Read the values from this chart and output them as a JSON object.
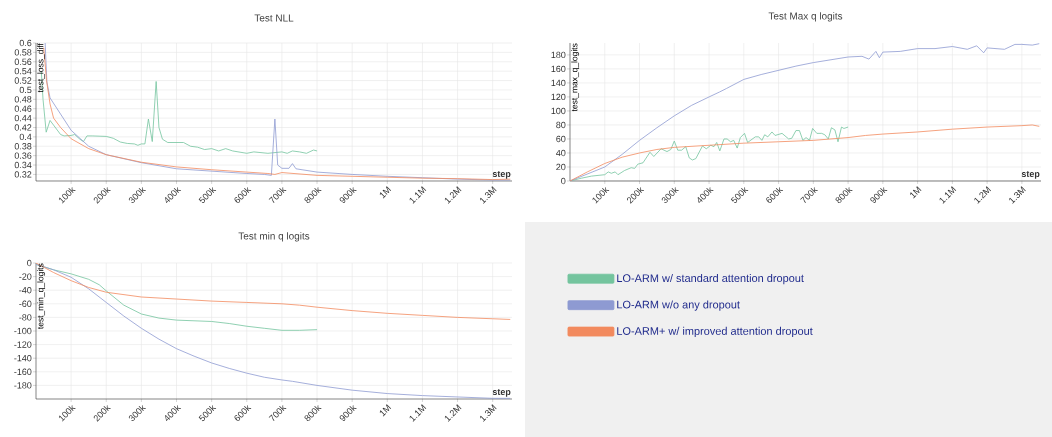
{
  "chart_data": [
    {
      "type": "line",
      "title": "Test NLL",
      "xlabel": "step",
      "ylabel": "test_loss_diff",
      "grid": true,
      "xlim": [
        0,
        1355000
      ],
      "ylim": [
        0.306,
        0.6
      ],
      "xticks": [
        {
          "value": 100000,
          "label": "100k"
        },
        {
          "value": 200000,
          "label": "200k"
        },
        {
          "value": 300000,
          "label": "300k"
        },
        {
          "value": 400000,
          "label": "400k"
        },
        {
          "value": 500000,
          "label": "500k"
        },
        {
          "value": 600000,
          "label": "600k"
        },
        {
          "value": 700000,
          "label": "700k"
        },
        {
          "value": 800000,
          "label": "800k"
        },
        {
          "value": 900000,
          "label": "900k"
        },
        {
          "value": 1000000,
          "label": "1M"
        },
        {
          "value": 1100000,
          "label": "1.1M"
        },
        {
          "value": 1200000,
          "label": "1.2M"
        },
        {
          "value": 1300000,
          "label": "1.3M"
        }
      ],
      "yticks": [
        0.32,
        0.34,
        0.36,
        0.38,
        0.4,
        0.42,
        0.44,
        0.46,
        0.48,
        0.5,
        0.52,
        0.54,
        0.56,
        0.58,
        0.6
      ],
      "series": [
        {
          "color": "#74c49e",
          "x": [
            15000,
            20000,
            29000,
            40000,
            50000,
            70000,
            80000,
            100000,
            110000,
            125000,
            135000,
            145000,
            160000,
            200000,
            220000,
            240000,
            260000,
            280000,
            290000,
            300000,
            310000,
            320000,
            331000,
            342000,
            350000,
            360000,
            375000,
            390000,
            420000,
            440000,
            460000,
            480000,
            500000,
            520000,
            540000,
            560000,
            600000,
            620000,
            660000,
            700000,
            715000,
            730000,
            750000,
            770000,
            790000,
            800000
          ],
          "values": [
            0.54,
            0.48,
            0.41,
            0.435,
            0.425,
            0.405,
            0.402,
            0.403,
            0.405,
            0.395,
            0.39,
            0.402,
            0.402,
            0.401,
            0.397,
            0.389,
            0.386,
            0.385,
            0.382,
            0.385,
            0.385,
            0.438,
            0.39,
            0.518,
            0.42,
            0.395,
            0.388,
            0.388,
            0.388,
            0.38,
            0.378,
            0.373,
            0.375,
            0.37,
            0.375,
            0.37,
            0.365,
            0.368,
            0.365,
            0.368,
            0.365,
            0.37,
            0.368,
            0.365,
            0.372,
            0.37
          ]
        },
        {
          "color": "#8e9ad2",
          "x": [
            26000,
            31000,
            40000,
            100000,
            150000,
            200000,
            300000,
            400000,
            500000,
            600000,
            650000,
            670000,
            680000,
            688000,
            700000,
            720000,
            730000,
            740000,
            800000,
            900000,
            1000000,
            1100000,
            1200000,
            1300000,
            1350000
          ],
          "values": [
            0.6,
            0.517,
            0.483,
            0.414,
            0.38,
            0.362,
            0.345,
            0.332,
            0.327,
            0.322,
            0.32,
            0.318,
            0.438,
            0.34,
            0.333,
            0.333,
            0.343,
            0.332,
            0.325,
            0.32,
            0.316,
            0.313,
            0.31,
            0.308,
            0.308
          ]
        },
        {
          "color": "#f28a5e",
          "x": [
            22000,
            30000,
            40000,
            50000,
            70000,
            100000,
            150000,
            200000,
            300000,
            400000,
            500000,
            600000,
            660000,
            680000,
            700000,
            800000,
            900000,
            1000000,
            1100000,
            1200000,
            1300000,
            1350000
          ],
          "values": [
            0.59,
            0.52,
            0.47,
            0.44,
            0.42,
            0.396,
            0.375,
            0.362,
            0.346,
            0.336,
            0.33,
            0.325,
            0.322,
            0.32,
            0.324,
            0.318,
            0.316,
            0.314,
            0.312,
            0.311,
            0.309,
            0.31
          ]
        }
      ]
    },
    {
      "type": "line",
      "title": "Test Max q logits",
      "xlabel": "step",
      "ylabel": "test_max_q_logits",
      "grid": true,
      "xlim": [
        0,
        1355000
      ],
      "ylim": [
        0,
        197
      ],
      "xticks": [
        {
          "value": 100000,
          "label": "100k"
        },
        {
          "value": 200000,
          "label": "200k"
        },
        {
          "value": 300000,
          "label": "300k"
        },
        {
          "value": 400000,
          "label": "400k"
        },
        {
          "value": 500000,
          "label": "500k"
        },
        {
          "value": 600000,
          "label": "600k"
        },
        {
          "value": 700000,
          "label": "700k"
        },
        {
          "value": 800000,
          "label": "800k"
        },
        {
          "value": 900000,
          "label": "900k"
        },
        {
          "value": 1000000,
          "label": "1M"
        },
        {
          "value": 1100000,
          "label": "1.1M"
        },
        {
          "value": 1200000,
          "label": "1.2M"
        },
        {
          "value": 1300000,
          "label": "1.3M"
        }
      ],
      "yticks": [
        0,
        20,
        40,
        60,
        80,
        100,
        120,
        140,
        160,
        180
      ],
      "series": [
        {
          "color": "#74c49e",
          "x": [
            0,
            33000,
            62000,
            100000,
            110000,
            119000,
            130000,
            138000,
            157000,
            176000,
            186000,
            195000,
            210000,
            230000,
            241000,
            262000,
            279000,
            290000,
            300000,
            310000,
            321000,
            333000,
            343000,
            352000,
            362000,
            381000,
            392000,
            405000,
            414000,
            422000,
            431000,
            443000,
            452000,
            462000,
            471000,
            481000,
            490000,
            502000,
            511000,
            533000,
            543000,
            552000,
            560000,
            569000,
            581000,
            590000,
            610000,
            629000,
            638000,
            650000,
            660000,
            670000,
            679000,
            689000,
            698000,
            710000,
            724000,
            733000,
            743000,
            752000,
            762000,
            771000,
            781000,
            788000,
            800000
          ],
          "values": [
            0,
            4,
            7,
            9,
            13,
            11,
            13,
            9,
            15,
            19,
            18,
            24,
            26,
            41,
            35,
            46,
            42,
            45,
            57,
            44,
            44,
            49,
            33,
            30,
            32,
            50,
            46,
            51,
            49,
            55,
            43,
            60,
            60,
            56,
            58,
            47,
            62,
            68,
            55,
            63,
            63,
            58,
            66,
            63,
            70,
            65,
            68,
            60,
            61,
            72,
            72,
            58,
            62,
            58,
            75,
            68,
            68,
            66,
            60,
            76,
            73,
            56,
            77,
            75,
            77
          ]
        },
        {
          "color": "#8e9ad2",
          "x": [
            0,
            100000,
            150000,
            200000,
            250000,
            300000,
            350000,
            400000,
            430000,
            450000,
            500000,
            550000,
            600000,
            650000,
            700000,
            750000,
            800000,
            840000,
            860000,
            880000,
            890000,
            900000,
            950000,
            1000000,
            1050000,
            1100000,
            1143000,
            1170000,
            1190000,
            1200000,
            1250000,
            1280000,
            1300000,
            1330000,
            1350000
          ],
          "values": [
            0,
            20,
            38,
            58,
            76,
            93,
            108,
            120,
            127,
            132,
            145,
            152,
            158,
            164,
            169,
            173,
            177,
            178,
            174,
            185,
            176,
            184,
            185,
            189,
            189,
            192,
            188,
            193,
            183,
            190,
            188,
            195,
            195,
            194,
            196
          ]
        },
        {
          "color": "#f28a5e",
          "x": [
            0,
            50000,
            100000,
            150000,
            200000,
            250000,
            300000,
            400000,
            500000,
            600000,
            700000,
            800000,
            850000,
            900000,
            1000000,
            1100000,
            1200000,
            1300000,
            1330000,
            1350000
          ],
          "values": [
            0,
            13,
            25,
            34,
            40,
            45,
            48,
            51,
            54,
            56,
            58,
            62,
            65,
            67,
            70,
            74,
            77,
            79,
            80,
            78
          ]
        }
      ]
    },
    {
      "type": "line",
      "title": "Test min q logits",
      "xlabel": "step",
      "ylabel": "test_min_q_logits",
      "grid": true,
      "legend": "right",
      "xlim": [
        0,
        1355000
      ],
      "ylim": [
        -200,
        0
      ],
      "xticks": [
        {
          "value": 100000,
          "label": "100k"
        },
        {
          "value": 200000,
          "label": "200k"
        },
        {
          "value": 300000,
          "label": "300k"
        },
        {
          "value": 400000,
          "label": "400k"
        },
        {
          "value": 500000,
          "label": "500k"
        },
        {
          "value": 600000,
          "label": "600k"
        },
        {
          "value": 700000,
          "label": "700k"
        },
        {
          "value": 800000,
          "label": "800k"
        },
        {
          "value": 900000,
          "label": "900k"
        },
        {
          "value": 1000000,
          "label": "1M"
        },
        {
          "value": 1100000,
          "label": "1.1M"
        },
        {
          "value": 1200000,
          "label": "1.2M"
        },
        {
          "value": 1300000,
          "label": "1.3M"
        }
      ],
      "yticks": [
        0,
        -20,
        -40,
        -60,
        -80,
        -100,
        -120,
        -140,
        -160,
        -180
      ],
      "series": [
        {
          "name": "LO-ARM w/ standard attention dropout",
          "color": "#74c49e",
          "x": [
            0,
            50000,
            100000,
            150000,
            180000,
            200000,
            250000,
            300000,
            350000,
            400000,
            500000,
            550000,
            600000,
            650000,
            700000,
            750000,
            800000
          ],
          "values": [
            -2,
            -10,
            -16,
            -24,
            -32,
            -41,
            -62,
            -75,
            -81,
            -84,
            -86,
            -89,
            -93,
            -96,
            -99,
            -99,
            -98
          ]
        },
        {
          "name": "LO-ARM w/o any dropout",
          "color": "#8e9ad2",
          "x": [
            0,
            50000,
            100000,
            150000,
            200000,
            250000,
            300000,
            350000,
            400000,
            450000,
            500000,
            550000,
            600000,
            650000,
            700000,
            730000,
            800000,
            900000,
            1000000,
            1100000,
            1200000,
            1300000,
            1350000
          ],
          "values": [
            -2,
            -10,
            -21,
            -38,
            -58,
            -78,
            -96,
            -112,
            -126,
            -137,
            -147,
            -155,
            -162,
            -168,
            -172,
            -174,
            -180,
            -187,
            -192,
            -195,
            -197,
            -199,
            -199
          ]
        },
        {
          "name": "LO-ARM+ w/ improved attention dropout",
          "color": "#f28a5e",
          "x": [
            0,
            50000,
            100000,
            150000,
            200000,
            300000,
            400000,
            500000,
            600000,
            700000,
            750000,
            800000,
            900000,
            1000000,
            1100000,
            1200000,
            1300000,
            1350000
          ],
          "values": [
            0,
            -14,
            -26,
            -36,
            -43,
            -50,
            -53,
            -56,
            -58,
            -60,
            -62,
            -65,
            -70,
            -74,
            -77,
            -80,
            -82,
            -83
          ]
        }
      ]
    }
  ]
}
